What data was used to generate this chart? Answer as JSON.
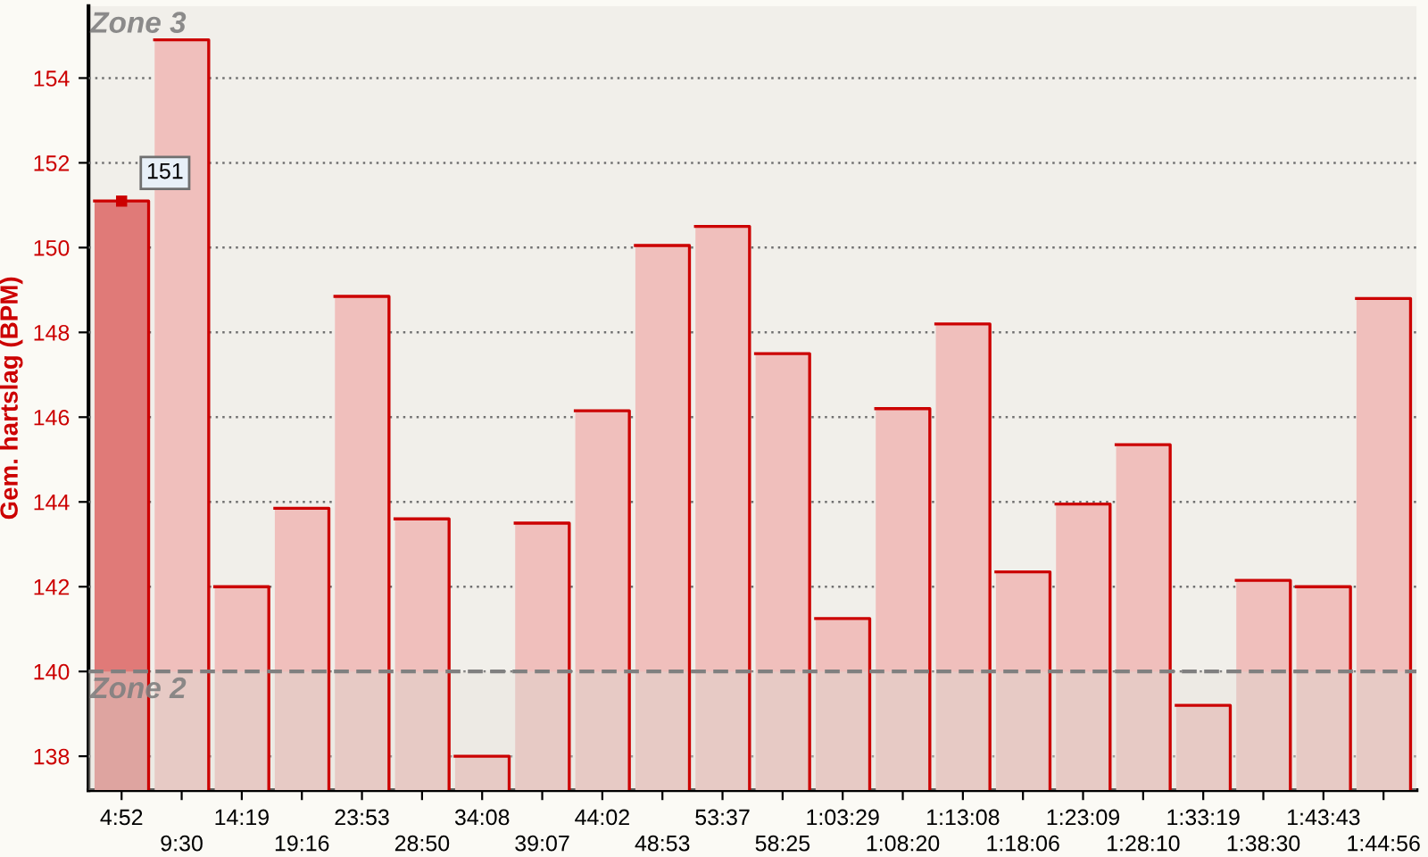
{
  "chart_data": {
    "type": "bar",
    "ylabel": "Gem. hartslag (BPM)",
    "categories": [
      "4:52",
      "9:30",
      "14:19",
      "19:16",
      "23:53",
      "28:50",
      "34:08",
      "39:07",
      "44:02",
      "48:53",
      "53:37",
      "58:25",
      "1:03:29",
      "1:08:20",
      "1:13:08",
      "1:18:06",
      "1:23:09",
      "1:28:10",
      "1:33:19",
      "1:38:30",
      "1:43:43",
      "1:44:56"
    ],
    "values": [
      151.1,
      154.9,
      142,
      143.85,
      148.85,
      143.6,
      138,
      143.5,
      146.15,
      150.05,
      150.5,
      147.5,
      141.25,
      146.2,
      148.2,
      142.35,
      143.95,
      145.35,
      139.2,
      142.15,
      142,
      148.8
    ],
    "colors": [
      "#e07a78",
      "#f0bfbc",
      "#f0bfbc",
      "#f0bfbc",
      "#f0bfbc",
      "#f0bfbc",
      "#f0bfbc",
      "#f0bfbc",
      "#f0bfbc",
      "#f0bfbc",
      "#f0bfbc",
      "#f0bfbc",
      "#f0bfbc",
      "#f0bfbc",
      "#f0bfbc",
      "#f0bfbc",
      "#f0bfbc",
      "#f0bfbc",
      "#f0bfbc",
      "#f0bfbc",
      "#f0bfbc",
      "#f0bfbc"
    ],
    "ylim": [
      137.2,
      155.7
    ],
    "yticks": [
      138,
      140,
      142,
      144,
      146,
      148,
      150,
      152,
      154
    ],
    "grid": "y",
    "bands": [
      {
        "axis": "y",
        "from": 140,
        "to": 155.7,
        "label": "Zone 3",
        "color": "#dcd8d0"
      },
      {
        "axis": "y",
        "from": 137.2,
        "to": 140,
        "label": "Zone 2",
        "color": "#dcd8d0"
      }
    ],
    "ref_lines": [
      {
        "axis": "y",
        "value": 140,
        "color": "#808080",
        "line_style": "dashed"
      }
    ],
    "annotations": [
      {
        "text": "151",
        "x": "4:52",
        "y": 151.1
      }
    ]
  }
}
